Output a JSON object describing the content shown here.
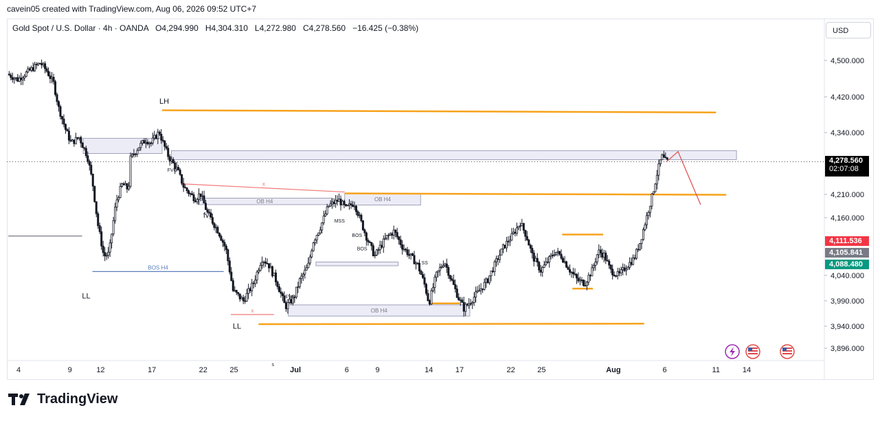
{
  "header": {
    "credit": "cavein05 created with TradingView.com, Aug 06, 2026 09:52 UTC+7",
    "symbol": "Gold Spot / U.S. Dollar · 4h · OANDA",
    "open": "O4,294.990",
    "high": "H4,304.310",
    "low": "L4,272.980",
    "close": "C4,278.560",
    "change": "−16.425 (−0.38%)"
  },
  "currency_button": "USD",
  "last_price": {
    "price": "4,278.560",
    "countdown": "02:07:08",
    "color": "#000000"
  },
  "price_tags": [
    {
      "label": "4,111.536",
      "color": "#f23645"
    },
    {
      "label": "4,105.841",
      "color": "#787b86"
    },
    {
      "label": "4,088.480",
      "color": "#089981"
    }
  ],
  "footer_logo": "TradingView",
  "chart_data": {
    "type": "candlestick",
    "symbol": "XAU/USD",
    "timeframe": "4h",
    "y_ticks": [
      "4,500.000",
      "4,420.000",
      "4,340.000",
      "4,210.000",
      "4,160.000",
      "4,040.000",
      "3,990.000",
      "3,940.000",
      "3,896.000"
    ],
    "y_tick_values": [
      4500,
      4420,
      4340,
      4210,
      4160,
      4040,
      3990,
      3940,
      3896
    ],
    "x_ticks": [
      "4",
      "9",
      "12",
      "17",
      "22",
      "25",
      "Jul",
      "6",
      "9",
      "14",
      "17",
      "22",
      "25",
      "Aug",
      "6",
      "11",
      "14"
    ],
    "x_tick_days": [
      4,
      9,
      12,
      17,
      22,
      25,
      31,
      36,
      39,
      44,
      47,
      52,
      55,
      62,
      67,
      72,
      75
    ],
    "x_range_days": [
      3,
      76
    ],
    "price_path": [
      [
        3.0,
        4470
      ],
      [
        4.0,
        4458
      ],
      [
        5.0,
        4475
      ],
      [
        6.2,
        4495
      ],
      [
        6.8,
        4478
      ],
      [
        7.5,
        4450
      ],
      [
        8.0,
        4395
      ],
      [
        8.7,
        4345
      ],
      [
        9.2,
        4318
      ],
      [
        10.0,
        4330
      ],
      [
        10.8,
        4290
      ],
      [
        11.3,
        4235
      ],
      [
        11.8,
        4148
      ],
      [
        12.4,
        4080
      ],
      [
        12.9,
        4085
      ],
      [
        13.6,
        4195
      ],
      [
        14.2,
        4232
      ],
      [
        14.8,
        4220
      ],
      [
        15.0,
        4285
      ],
      [
        15.8,
        4310
      ],
      [
        16.5,
        4325
      ],
      [
        17.0,
        4318
      ],
      [
        17.8,
        4342
      ],
      [
        18.1,
        4322
      ],
      [
        18.7,
        4290
      ],
      [
        19.6,
        4260
      ],
      [
        20.2,
        4225
      ],
      [
        21.3,
        4200
      ],
      [
        21.8,
        4212
      ],
      [
        22.5,
        4170
      ],
      [
        23.6,
        4130
      ],
      [
        24.3,
        4095
      ],
      [
        25.0,
        4010
      ],
      [
        26.0,
        3990
      ],
      [
        27.0,
        4025
      ],
      [
        27.8,
        4075
      ],
      [
        28.4,
        4065
      ],
      [
        29.3,
        4025
      ],
      [
        30.1,
        3978
      ],
      [
        30.9,
        3995
      ],
      [
        31.5,
        4030
      ],
      [
        32.3,
        4058
      ],
      [
        32.8,
        4110
      ],
      [
        33.5,
        4140
      ],
      [
        34.3,
        4185
      ],
      [
        35.3,
        4198
      ],
      [
        36.0,
        4180
      ],
      [
        36.8,
        4192
      ],
      [
        37.3,
        4162
      ],
      [
        38.0,
        4120
      ],
      [
        38.8,
        4080
      ],
      [
        39.3,
        4098
      ],
      [
        40.0,
        4120
      ],
      [
        40.7,
        4132
      ],
      [
        41.5,
        4100
      ],
      [
        42.3,
        4080
      ],
      [
        43.0,
        4062
      ],
      [
        43.7,
        4020
      ],
      [
        44.1,
        3985
      ],
      [
        44.8,
        4040
      ],
      [
        45.6,
        4070
      ],
      [
        46.2,
        4035
      ],
      [
        47.0,
        3995
      ],
      [
        47.5,
        3975
      ],
      [
        48.2,
        3990
      ],
      [
        49.0,
        4010
      ],
      [
        49.8,
        4030
      ],
      [
        50.8,
        4075
      ],
      [
        51.4,
        4100
      ],
      [
        52.2,
        4122
      ],
      [
        53.0,
        4150
      ],
      [
        53.6,
        4122
      ],
      [
        54.2,
        4080
      ],
      [
        55.0,
        4050
      ],
      [
        55.7,
        4070
      ],
      [
        56.4,
        4090
      ],
      [
        57.0,
        4080
      ],
      [
        57.8,
        4052
      ],
      [
        58.6,
        4030
      ],
      [
        59.3,
        4025
      ],
      [
        60.0,
        4050
      ],
      [
        60.6,
        4090
      ],
      [
        61.2,
        4082
      ],
      [
        61.8,
        4050
      ],
      [
        62.6,
        4040
      ],
      [
        63.4,
        4060
      ],
      [
        64.1,
        4075
      ],
      [
        64.7,
        4110
      ],
      [
        65.3,
        4160
      ],
      [
        65.9,
        4210
      ],
      [
        66.4,
        4260
      ],
      [
        66.8,
        4290
      ],
      [
        67.2,
        4279
      ]
    ],
    "last_price_value": 4278.56,
    "levels": [
      {
        "kind": "horizontal-orange",
        "from_day": 18.0,
        "to_day": 72.0,
        "start_price": 4390,
        "end_price": 4385,
        "color": "#f7a21b",
        "label": ""
      },
      {
        "kind": "horizontal-orange",
        "from_day": 35.8,
        "to_day": 73.0,
        "start_price": 4212,
        "end_price": 4209,
        "color": "#f7a21b",
        "label": ""
      },
      {
        "kind": "horizontal-orange",
        "from_day": 27.4,
        "to_day": 65.0,
        "start_price": 3944,
        "end_price": 3945,
        "color": "#f7a21b",
        "label": ""
      },
      {
        "kind": "horizontal-orange",
        "from_day": 44.0,
        "to_day": 47.0,
        "start_price": 3985,
        "end_price": 3985,
        "color": "#f7a21b",
        "label": ""
      },
      {
        "kind": "horizontal-orange",
        "from_day": 58.0,
        "to_day": 60.0,
        "start_price": 4014,
        "end_price": 4014,
        "color": "#f7a21b",
        "label": ""
      },
      {
        "kind": "horizontal-orange",
        "from_day": 57.0,
        "to_day": 61.0,
        "start_price": 4125,
        "end_price": 4125,
        "color": "#f7a21b",
        "label": ""
      },
      {
        "kind": "horizontal-gray",
        "from_day": 3.0,
        "to_day": 10.2,
        "start_price": 4122,
        "end_price": 4122,
        "color": "#787b86",
        "label": ""
      },
      {
        "kind": "bos",
        "from_day": 11.2,
        "to_day": 24.0,
        "start_price": 4048,
        "end_price": 4048,
        "color": "#5a7fb8",
        "label": "BOS H4"
      },
      {
        "kind": "liquidity",
        "from_day": 20.0,
        "to_day": 35.8,
        "start_price": 4232,
        "end_price": 4215,
        "color": "#f07878",
        "label": "x"
      },
      {
        "kind": "liquidity",
        "from_day": 24.7,
        "to_day": 28.9,
        "start_price": 3963,
        "end_price": 3963,
        "color": "#f07878",
        "label": "x"
      }
    ],
    "zones": [
      {
        "from_day": 10.3,
        "to_day": 18.0,
        "top_price": 4328,
        "bottom_price": 4296,
        "label": ""
      },
      {
        "from_day": 18.9,
        "to_day": 74.0,
        "top_price": 4302,
        "bottom_price": 4283,
        "label": ""
      },
      {
        "from_day": 21.5,
        "to_day": 34.5,
        "top_price": 4202,
        "bottom_price": 4188,
        "label": "OB H4"
      },
      {
        "from_day": 35.8,
        "to_day": 43.2,
        "top_price": 4212,
        "bottom_price": 4187,
        "label": "OB H4"
      },
      {
        "from_day": 30.3,
        "to_day": 48.0,
        "top_price": 3982,
        "bottom_price": 3960,
        "label": "OB H4"
      },
      {
        "from_day": 33.0,
        "to_day": 41.0,
        "top_price": 4068,
        "bottom_price": 4060,
        "label": ""
      }
    ],
    "annotations": [
      {
        "text": "LH",
        "day": 18.2,
        "price": 4405
      },
      {
        "text": "LL",
        "day": 10.6,
        "price": 3995
      },
      {
        "text": "LL",
        "day": 25.3,
        "price": 3935
      },
      {
        "text": "fvg",
        "day": 22.5,
        "price": 4160
      },
      {
        "text": "FVG",
        "day": 19.0,
        "price": 4258
      },
      {
        "text": "FVG",
        "day": 30.5,
        "price": 3995
      },
      {
        "text": "MSS",
        "day": 35.3,
        "price": 4150
      },
      {
        "text": "BOS",
        "day": 37.0,
        "price": 4120
      },
      {
        "text": "BOS",
        "day": 37.5,
        "price": 4092
      },
      {
        "text": "SS",
        "day": 43.6,
        "price": 4063
      },
      {
        "text": "s",
        "day": 28.8,
        "price": 3860
      }
    ],
    "projection": [
      [
        67.2,
        4279
      ],
      [
        68.3,
        4300
      ],
      [
        70.5,
        4188
      ]
    ],
    "projection_color": "#e04848",
    "grid": false,
    "legend": "top-left"
  }
}
